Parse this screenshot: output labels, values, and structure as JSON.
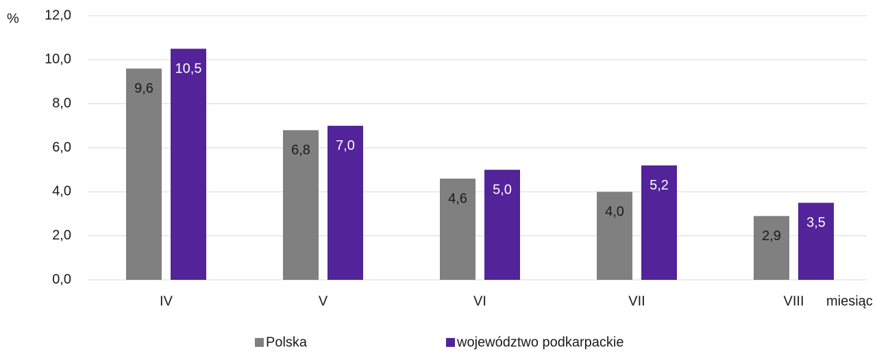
{
  "chart_data": {
    "type": "bar",
    "y_axis_label": "%",
    "x_axis_label": "miesiąc",
    "categories": [
      "IV",
      "V",
      "VI",
      "VII",
      "VIII"
    ],
    "series": [
      {
        "name": "Polska",
        "color": "#808080",
        "values": [
          9.6,
          6.8,
          4.6,
          4.0,
          2.9
        ],
        "value_labels": [
          "9,6",
          "6,8",
          "4,6",
          "4,0",
          "2,9"
        ]
      },
      {
        "name": "województwo podkarpackie",
        "color": "#53239a",
        "values": [
          10.5,
          7.0,
          5.0,
          5.2,
          3.5
        ],
        "value_labels": [
          "10,5",
          "7,0",
          "5,0",
          "5,2",
          "3,5"
        ]
      }
    ],
    "ylim": [
      0,
      12
    ],
    "yticks": [
      {
        "value": 0,
        "label": "0,0"
      },
      {
        "value": 2,
        "label": "2,0"
      },
      {
        "value": 4,
        "label": "4,0"
      },
      {
        "value": 6,
        "label": "6,0"
      },
      {
        "value": 8,
        "label": "8,0"
      },
      {
        "value": 10,
        "label": "10,0"
      },
      {
        "value": 12,
        "label": "12,0"
      }
    ],
    "grid": true,
    "legend": "bottom"
  }
}
